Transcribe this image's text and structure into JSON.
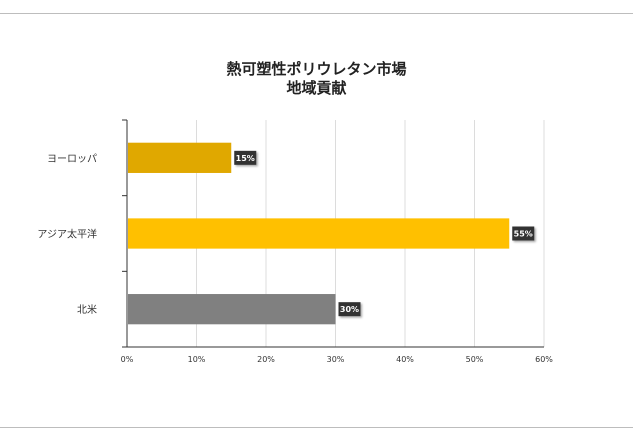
{
  "chart_data": {
    "type": "bar",
    "orientation": "horizontal",
    "title_lines": [
      "熱可塑性ポリウレタン市場",
      "地域貢献"
    ],
    "categories": [
      "ヨーロッパ",
      "アジア太平洋",
      "北米"
    ],
    "values": [
      15,
      55,
      30
    ],
    "value_labels": [
      "15%",
      "55%",
      "30%"
    ],
    "bar_colors": [
      "#e0a800",
      "#ffc000",
      "#808080"
    ],
    "xlim": [
      0,
      60
    ],
    "x_ticks": [
      "0%",
      "10%",
      "20%",
      "30%",
      "40%",
      "50%",
      "60%"
    ],
    "grid": true,
    "legend": "none"
  }
}
